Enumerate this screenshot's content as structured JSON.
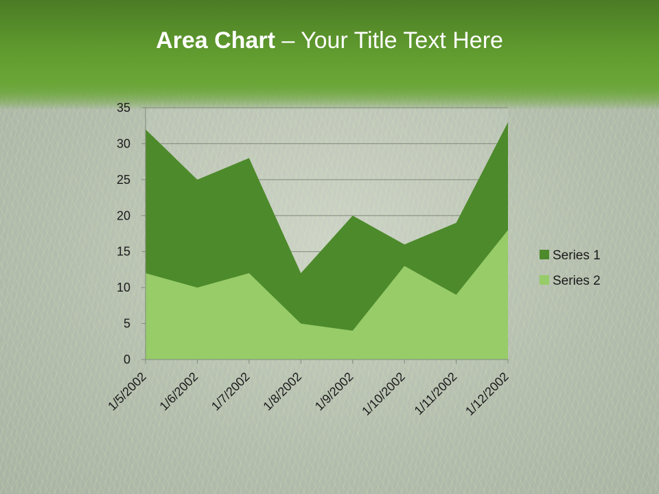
{
  "slide": {
    "title_bold": "Area Chart",
    "title_rest": " – Your Title Text Here"
  },
  "colors": {
    "series1": "#4d8a2b",
    "series2": "#97cc69",
    "header": "#5f9a2e"
  },
  "chart_data": {
    "type": "area",
    "categories": [
      "1/5/2002",
      "1/6/2002",
      "1/7/2002",
      "1/8/2002",
      "1/9/2002",
      "1/10/2002",
      "1/11/2002",
      "1/12/2002"
    ],
    "series": [
      {
        "name": "Series 1",
        "values": [
          32,
          25,
          28,
          12,
          20,
          16,
          19,
          33
        ]
      },
      {
        "name": "Series 2",
        "values": [
          12,
          10,
          12,
          5,
          4,
          13,
          9,
          18
        ]
      }
    ],
    "ylim": [
      0,
      35
    ],
    "yticks": [
      0,
      5,
      10,
      15,
      20,
      25,
      30,
      35
    ],
    "grid": true,
    "legend": "right"
  }
}
